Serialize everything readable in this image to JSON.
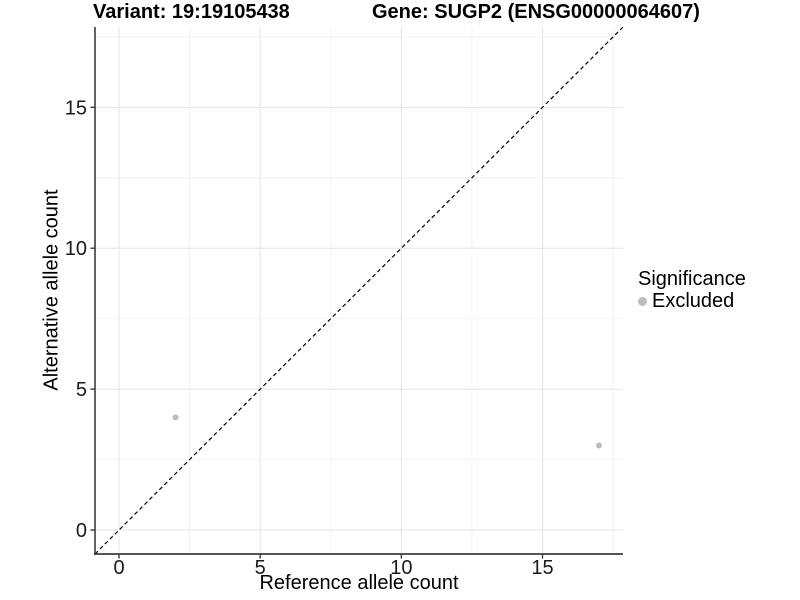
{
  "titles": {
    "variant": "Variant: 19:19105438",
    "gene": "Gene: SUGP2 (ENSG00000064607)"
  },
  "legend": {
    "title": "Significance",
    "items": [
      {
        "label": "Excluded",
        "color": "#bdbdbd"
      }
    ]
  },
  "chart_data": {
    "type": "scatter",
    "title": "Variant: 19:19105438    Gene: SUGP2 (ENSG00000064607)",
    "xlabel": "Reference allele count",
    "ylabel": "Alternative allele count",
    "xlim": [
      -0.85,
      17.85
    ],
    "ylim": [
      -0.85,
      17.85
    ],
    "x_ticks": [
      0,
      5,
      10,
      15
    ],
    "y_ticks": [
      0,
      5,
      10,
      15
    ],
    "x_minor_ticks": [
      2.5,
      7.5,
      12.5,
      17.5
    ],
    "y_minor_ticks": [
      2.5,
      7.5,
      12.5,
      17.5
    ],
    "grid": true,
    "legend_position": "right",
    "legend_title": "Significance",
    "series": [
      {
        "name": "Excluded",
        "color": "#bdbdbd",
        "marker_radius": 3,
        "points": [
          {
            "x": 2,
            "y": 4
          },
          {
            "x": 17,
            "y": 3
          }
        ]
      }
    ],
    "reference_line": {
      "type": "identity",
      "style": "dashed",
      "color": "#000000"
    },
    "style_colors": {
      "grid_major": "#e4e4e4",
      "grid_minor": "#f2f2f2",
      "axis_line": "#3c3c3c",
      "tick_text": "#1a1a1a"
    }
  }
}
